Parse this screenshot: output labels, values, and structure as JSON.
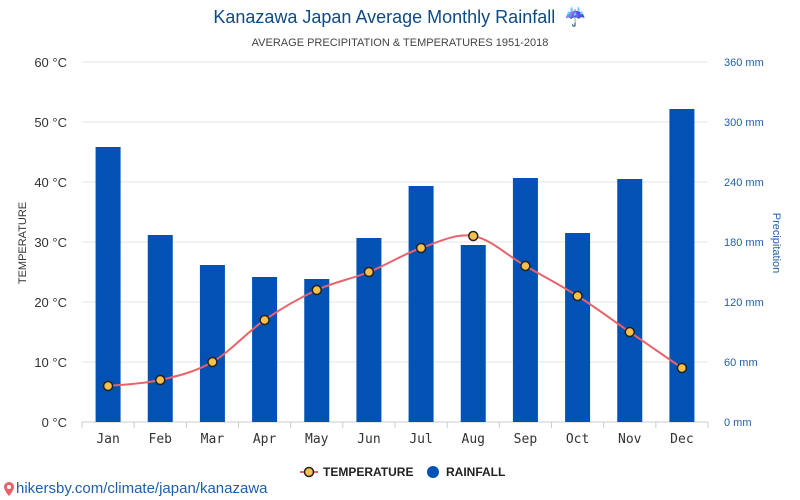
{
  "colors": {
    "rainfall": "#0152b4",
    "temperature_line": "#e8636b",
    "temperature_marker": "#f7c04a",
    "title": "#0e4a86",
    "right_axis": "#1f5fa9",
    "grid": "#e6e6e6"
  },
  "legend": {
    "temperature": "TEMPERATURE",
    "rainfall": "RAINFALL"
  },
  "source": {
    "text": "hikersby.com/climate/japan/kanazawa",
    "icon": "location-pin-icon"
  },
  "chart_data": {
    "type": "bar",
    "title": "Kanazawa Japan Average Monthly Rainfall",
    "title_icon": "umbrella-icon",
    "title_icon_glyph": "☔",
    "subtitle": "AVERAGE PRECIPITATION & TEMPERATURES 1951-2018",
    "categories": [
      "Jan",
      "Feb",
      "Mar",
      "Apr",
      "May",
      "Jun",
      "Jul",
      "Aug",
      "Sep",
      "Oct",
      "Nov",
      "Dec"
    ],
    "left_axis": {
      "label": "TEMPERATURE",
      "unit": "°C",
      "min": 0,
      "max": 60,
      "ticks": [
        "0 °C",
        "10 °C",
        "20 °C",
        "30 °C",
        "40 °C",
        "50 °C",
        "60 °C"
      ]
    },
    "right_axis": {
      "label": "Precipitation",
      "unit": "mm",
      "min": 0,
      "max": 360,
      "ticks": [
        "0 mm",
        "60 mm",
        "120 mm",
        "180 mm",
        "240 mm",
        "300 mm",
        "360 mm"
      ]
    },
    "series": [
      {
        "name": "RAINFALL",
        "type": "bar",
        "axis": "right",
        "values": [
          275,
          187,
          157,
          145,
          143,
          184,
          236,
          177,
          244,
          189,
          243,
          313
        ]
      },
      {
        "name": "TEMPERATURE",
        "type": "line",
        "axis": "left",
        "values": [
          6,
          7,
          10,
          17,
          22,
          25,
          29,
          31,
          26,
          21,
          15,
          9
        ]
      }
    ],
    "grid": true,
    "legend_position": "bottom-center"
  }
}
